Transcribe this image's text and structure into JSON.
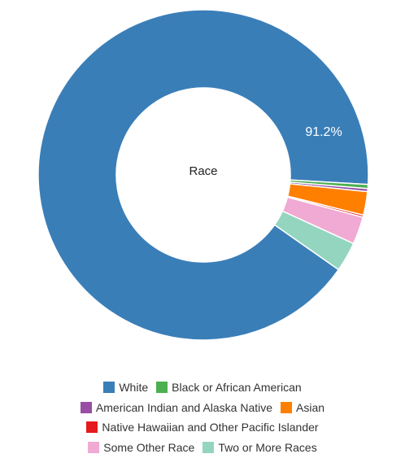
{
  "chart_data": {
    "type": "pie",
    "donut": true,
    "center_label": "Race",
    "categories": [
      "White",
      "Black or African American",
      "American Indian and Alaska Native",
      "Asian",
      "Native Hawaiian and Other Pacific Islander",
      "Some Other Race",
      "Two or More Races"
    ],
    "values": [
      91.2,
      0.4,
      0.3,
      2.3,
      0.2,
      2.7,
      2.9
    ],
    "colors": [
      "#3a7eb8",
      "#4caf50",
      "#984ea3",
      "#ff7f00",
      "#e41a1c",
      "#f0aad3",
      "#94d5c0"
    ],
    "data_labels": [
      {
        "category": "White",
        "text": "91.2%"
      }
    ],
    "legend_position": "bottom",
    "legend_rows": [
      [
        0,
        1
      ],
      [
        2,
        3
      ],
      [
        4
      ],
      [
        5,
        6
      ]
    ]
  }
}
